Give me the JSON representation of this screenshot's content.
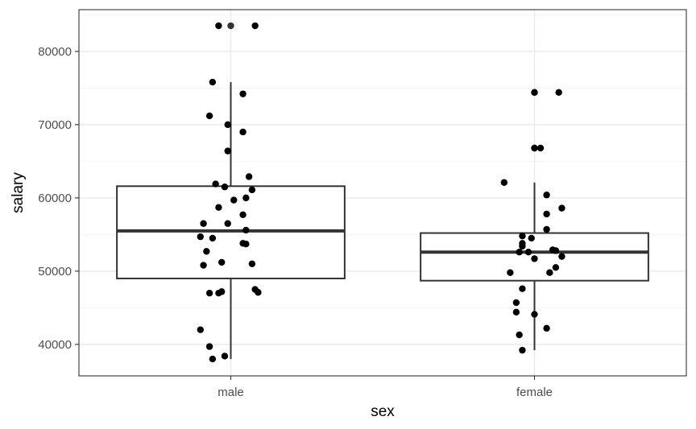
{
  "chart_data": {
    "type": "boxplot",
    "title": "",
    "xlabel": "sex",
    "ylabel": "salary",
    "categories": [
      "male",
      "female"
    ],
    "y_ticks": [
      40000,
      50000,
      60000,
      70000,
      80000
    ],
    "y_tick_labels": [
      "40000",
      "50000",
      "60000",
      "70000",
      "80000"
    ],
    "ylim": [
      35700,
      85700
    ],
    "grid": true,
    "legend": "none",
    "boxes": [
      {
        "category": "male",
        "whisker_low": 38000,
        "q1": 49000,
        "median": 55500,
        "q3": 61600,
        "whisker_high": 75800,
        "outliers": [
          83500
        ]
      },
      {
        "category": "female",
        "whisker_low": 39200,
        "q1": 48700,
        "median": 52600,
        "q3": 55200,
        "whisker_high": 62100,
        "outliers": [
          66800,
          74400
        ]
      }
    ],
    "points": [
      {
        "category": "male",
        "jitter": -0.04,
        "value": 83500
      },
      {
        "category": "male",
        "jitter": 0.08,
        "value": 83500
      },
      {
        "category": "male",
        "jitter": -0.06,
        "value": 75800
      },
      {
        "category": "male",
        "jitter": 0.04,
        "value": 74200
      },
      {
        "category": "male",
        "jitter": -0.07,
        "value": 71200
      },
      {
        "category": "male",
        "jitter": -0.01,
        "value": 70000
      },
      {
        "category": "male",
        "jitter": 0.04,
        "value": 69000
      },
      {
        "category": "male",
        "jitter": -0.01,
        "value": 66400
      },
      {
        "category": "male",
        "jitter": 0.06,
        "value": 62900
      },
      {
        "category": "male",
        "jitter": -0.05,
        "value": 61900
      },
      {
        "category": "male",
        "jitter": -0.02,
        "value": 61500
      },
      {
        "category": "male",
        "jitter": 0.07,
        "value": 61100
      },
      {
        "category": "male",
        "jitter": 0.05,
        "value": 60000
      },
      {
        "category": "male",
        "jitter": 0.01,
        "value": 59700
      },
      {
        "category": "male",
        "jitter": -0.04,
        "value": 58700
      },
      {
        "category": "male",
        "jitter": 0.04,
        "value": 57700
      },
      {
        "category": "male",
        "jitter": -0.09,
        "value": 56500
      },
      {
        "category": "male",
        "jitter": -0.01,
        "value": 56500
      },
      {
        "category": "male",
        "jitter": 0.05,
        "value": 55600
      },
      {
        "category": "male",
        "jitter": -0.1,
        "value": 54700
      },
      {
        "category": "male",
        "jitter": -0.06,
        "value": 54500
      },
      {
        "category": "male",
        "jitter": 0.04,
        "value": 53800
      },
      {
        "category": "male",
        "jitter": 0.05,
        "value": 53700
      },
      {
        "category": "male",
        "jitter": -0.08,
        "value": 52700
      },
      {
        "category": "male",
        "jitter": -0.03,
        "value": 51200
      },
      {
        "category": "male",
        "jitter": 0.07,
        "value": 51000
      },
      {
        "category": "male",
        "jitter": -0.09,
        "value": 50800
      },
      {
        "category": "male",
        "jitter": 0.08,
        "value": 47500
      },
      {
        "category": "male",
        "jitter": 0.09,
        "value": 47100
      },
      {
        "category": "male",
        "jitter": -0.03,
        "value": 47200
      },
      {
        "category": "male",
        "jitter": -0.07,
        "value": 47000
      },
      {
        "category": "male",
        "jitter": -0.04,
        "value": 47000
      },
      {
        "category": "male",
        "jitter": -0.1,
        "value": 42000
      },
      {
        "category": "male",
        "jitter": -0.07,
        "value": 39700
      },
      {
        "category": "male",
        "jitter": -0.02,
        "value": 38400
      },
      {
        "category": "male",
        "jitter": -0.06,
        "value": 38000
      },
      {
        "category": "female",
        "jitter": 0.0,
        "value": 74400
      },
      {
        "category": "female",
        "jitter": 0.08,
        "value": 74400
      },
      {
        "category": "female",
        "jitter": 0.0,
        "value": 66800
      },
      {
        "category": "female",
        "jitter": 0.02,
        "value": 66800
      },
      {
        "category": "female",
        "jitter": -0.1,
        "value": 62100
      },
      {
        "category": "female",
        "jitter": 0.04,
        "value": 60400
      },
      {
        "category": "female",
        "jitter": 0.09,
        "value": 58600
      },
      {
        "category": "female",
        "jitter": 0.04,
        "value": 57800
      },
      {
        "category": "female",
        "jitter": 0.04,
        "value": 55700
      },
      {
        "category": "female",
        "jitter": -0.04,
        "value": 54800
      },
      {
        "category": "female",
        "jitter": -0.01,
        "value": 54500
      },
      {
        "category": "female",
        "jitter": -0.04,
        "value": 53800
      },
      {
        "category": "female",
        "jitter": -0.04,
        "value": 53400
      },
      {
        "category": "female",
        "jitter": 0.06,
        "value": 52900
      },
      {
        "category": "female",
        "jitter": 0.07,
        "value": 52800
      },
      {
        "category": "female",
        "jitter": -0.05,
        "value": 52600
      },
      {
        "category": "female",
        "jitter": -0.02,
        "value": 52600
      },
      {
        "category": "female",
        "jitter": 0.09,
        "value": 52000
      },
      {
        "category": "female",
        "jitter": 0.0,
        "value": 51700
      },
      {
        "category": "female",
        "jitter": 0.07,
        "value": 50500
      },
      {
        "category": "female",
        "jitter": -0.08,
        "value": 49800
      },
      {
        "category": "female",
        "jitter": 0.05,
        "value": 49800
      },
      {
        "category": "female",
        "jitter": -0.04,
        "value": 47600
      },
      {
        "category": "female",
        "jitter": -0.06,
        "value": 45700
      },
      {
        "category": "female",
        "jitter": -0.06,
        "value": 44400
      },
      {
        "category": "female",
        "jitter": 0.0,
        "value": 44100
      },
      {
        "category": "female",
        "jitter": 0.04,
        "value": 42200
      },
      {
        "category": "female",
        "jitter": -0.05,
        "value": 41300
      },
      {
        "category": "female",
        "jitter": -0.04,
        "value": 39200
      }
    ]
  }
}
